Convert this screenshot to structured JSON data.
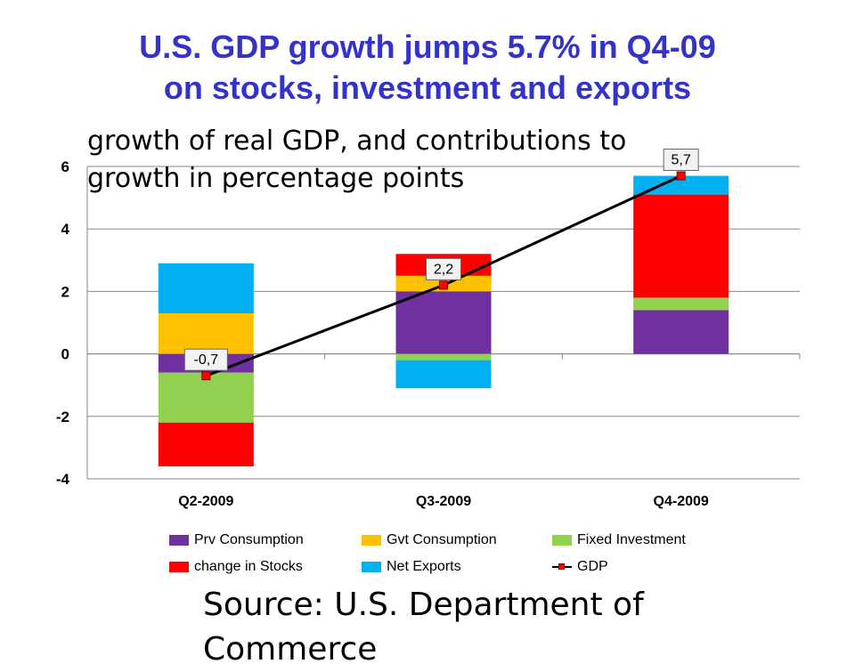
{
  "title": {
    "line1": "U.S. GDP growth jumps 5.7% in Q4-09",
    "line2": "on stocks, investment and exports"
  },
  "subtitle": "growth of real GDP, and contributions to growth in percentage points",
  "source": "Source: U.S. Department of Commerce",
  "colors": {
    "title": "#3333cc",
    "prv_consumption": "#7030a0",
    "gvt_consumption": "#ffc000",
    "fixed_investment": "#92d050",
    "change_in_stocks": "#ff0000",
    "net_exports": "#00b0f0",
    "gdp_line": "#000000",
    "gdp_marker": "#ff0000"
  },
  "chart_data": {
    "type": "bar",
    "stacked": true,
    "categories": [
      "Q2-2009",
      "Q3-2009",
      "Q4-2009"
    ],
    "series": [
      {
        "name": "Prv Consumption",
        "color": "#7030a0",
        "values": [
          -0.6,
          2.0,
          1.4
        ]
      },
      {
        "name": "Gvt Consumption",
        "color": "#ffc000",
        "values": [
          1.3,
          0.5,
          0.0
        ]
      },
      {
        "name": "Fixed Investment",
        "color": "#92d050",
        "values": [
          -1.6,
          -0.2,
          0.4
        ]
      },
      {
        "name": "change in Stocks",
        "color": "#ff0000",
        "values": [
          -1.4,
          0.7,
          3.3
        ]
      },
      {
        "name": "Net Exports",
        "color": "#00b0f0",
        "values": [
          1.6,
          -0.9,
          0.6
        ]
      }
    ],
    "line_series": {
      "name": "GDP",
      "type": "line",
      "values": [
        -0.7,
        2.2,
        5.7
      ],
      "labels": [
        "-0,7",
        "2,2",
        "5,7"
      ]
    },
    "ylim": [
      -4,
      6
    ],
    "yticks": [
      -4,
      -2,
      0,
      2,
      4,
      6
    ],
    "grid": true,
    "legend": "bottom"
  }
}
